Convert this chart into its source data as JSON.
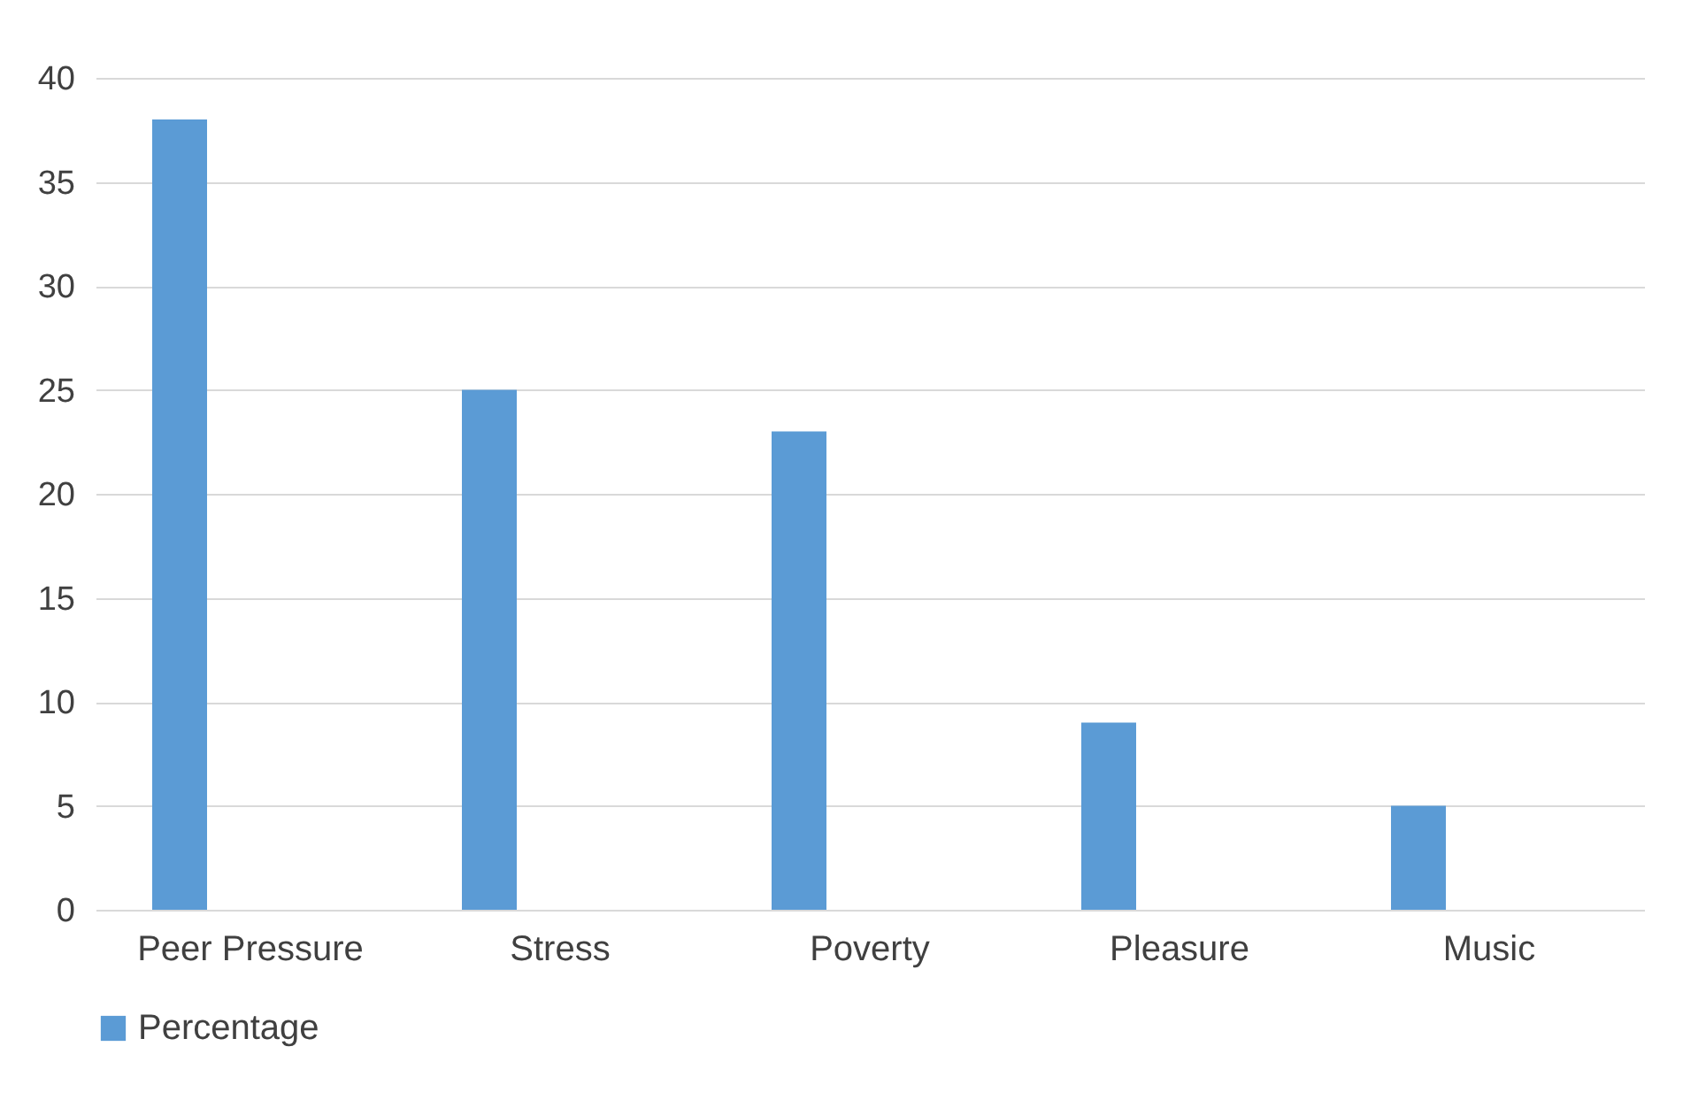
{
  "chart_data": {
    "type": "bar",
    "categories": [
      "Peer Pressure",
      "Stress",
      "Poverty",
      "Pleasure",
      "Music"
    ],
    "series": [
      {
        "name": "Percentage",
        "color": "#5b9bd5",
        "values": [
          38,
          25,
          23,
          9,
          5
        ]
      }
    ],
    "ylim": [
      0,
      40
    ],
    "yticks": [
      0,
      5,
      10,
      15,
      20,
      25,
      30,
      35,
      40
    ],
    "grid": "y",
    "legend": "bottom"
  }
}
